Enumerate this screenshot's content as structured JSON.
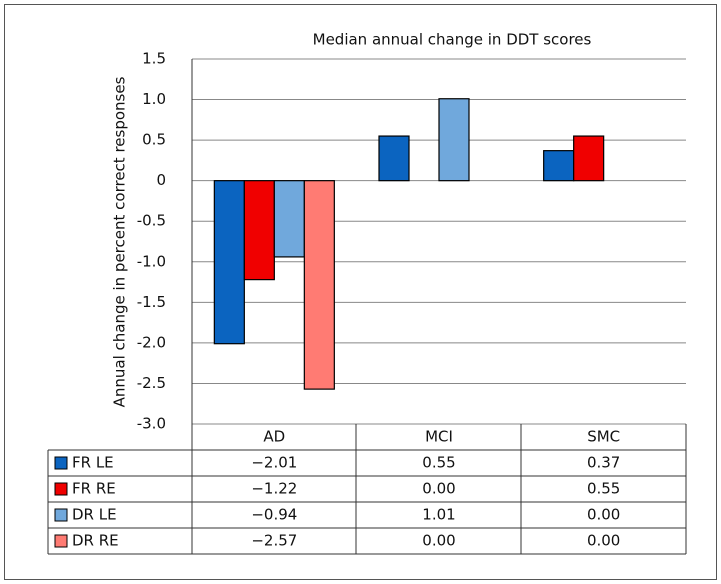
{
  "chart_data": {
    "type": "bar",
    "title": "Median annual change in DDT scores",
    "y_label": "Annual change in percent correct responses",
    "categories": [
      "AD",
      "MCI",
      "SMC"
    ],
    "ylim": [
      -3.0,
      1.5
    ],
    "yticks": [
      {
        "value": 1.5,
        "label": "1.5"
      },
      {
        "value": 1.0,
        "label": "1.0"
      },
      0.5,
      0,
      -0.5,
      {
        "value": -1.0,
        "label": "-1.0"
      },
      -1.5,
      {
        "value": -2.0,
        "label": "-2.0"
      },
      -2.5,
      {
        "value": -3.0,
        "label": "-3.0"
      }
    ],
    "grid": true,
    "series": [
      {
        "name": "FR LE",
        "color": "#0b64c0",
        "values": [
          -2.01,
          0.55,
          0.37
        ],
        "value_labels": [
          "−2.01",
          "0.55",
          "0.37"
        ]
      },
      {
        "name": "FR RE",
        "color": "#f00000",
        "values": [
          -1.22,
          0.0,
          0.55
        ],
        "value_labels": [
          "−1.22",
          "0.00",
          "0.55"
        ]
      },
      {
        "name": "DR LE",
        "color": "#70a8dc",
        "values": [
          -0.94,
          1.01,
          0.0
        ],
        "value_labels": [
          "−0.94",
          "1.01",
          "0.00"
        ]
      },
      {
        "name": "DR RE",
        "color": "#ff7b73",
        "values": [
          -2.57,
          0.0,
          0.0
        ],
        "value_labels": [
          "−2.57",
          "0.00",
          "0.00"
        ]
      }
    ]
  }
}
